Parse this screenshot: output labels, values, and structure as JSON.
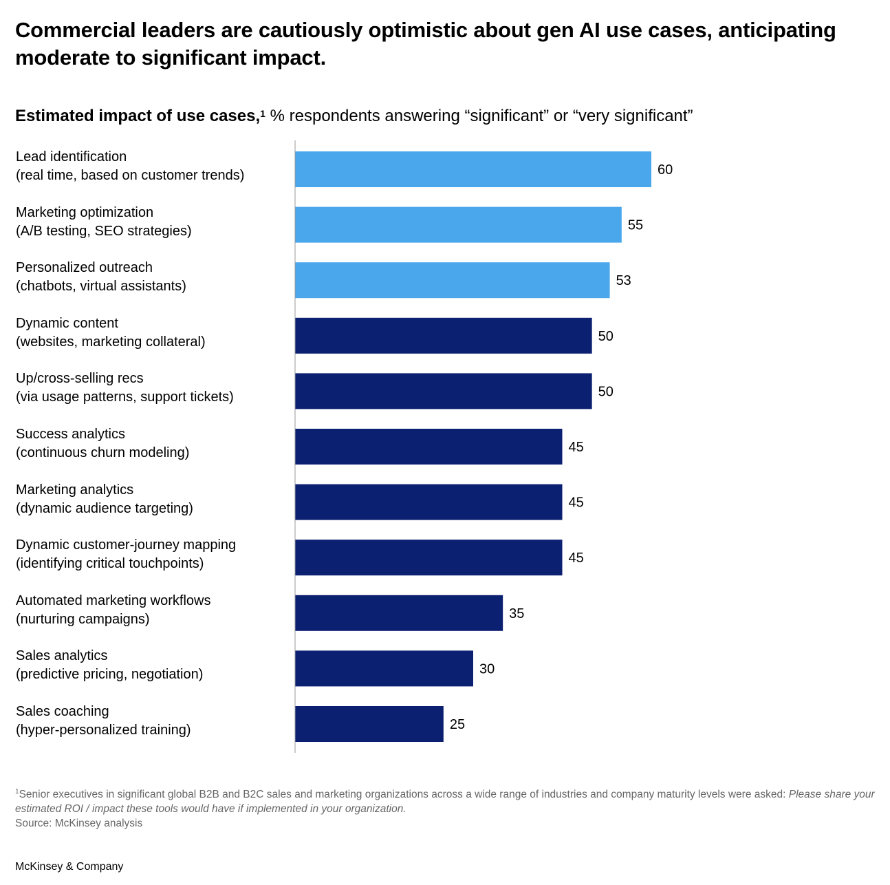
{
  "title": "Commercial leaders are cautiously optimistic about gen AI use cases, anticipating moderate to significant impact.",
  "subtitle": {
    "bold": "Estimated impact of use cases,",
    "footnote_marker": "1",
    "rest": " % respondents answering “significant” or “very significant”"
  },
  "chart_data": {
    "type": "bar",
    "orientation": "horizontal",
    "categories": [
      {
        "name": "Lead identification",
        "detail": "(real time, based on customer trends)"
      },
      {
        "name": "Marketing optimization",
        "detail": "(A/B testing, SEO strategies)"
      },
      {
        "name": "Personalized outreach",
        "detail": "(chatbots, virtual assistants)"
      },
      {
        "name": "Dynamic content",
        "detail": "(websites, marketing collateral)"
      },
      {
        "name": "Up/cross-selling recs",
        "detail": "(via usage patterns, support tickets)"
      },
      {
        "name": "Success analytics",
        "detail": "(continuous churn modeling)"
      },
      {
        "name": "Marketing analytics",
        "detail": "(dynamic audience targeting)"
      },
      {
        "name": "Dynamic customer-journey mapping",
        "detail": "(identifying critical touchpoints)"
      },
      {
        "name": "Automated marketing workflows",
        "detail": "(nurturing campaigns)"
      },
      {
        "name": "Sales analytics",
        "detail": "(predictive pricing, negotiation)"
      },
      {
        "name": "Sales coaching",
        "detail": "(hyper-personalized training)"
      }
    ],
    "values": [
      60,
      55,
      53,
      50,
      50,
      45,
      45,
      45,
      35,
      30,
      25
    ],
    "highlighted": [
      true,
      true,
      true,
      false,
      false,
      false,
      false,
      false,
      false,
      false,
      false
    ],
    "colors": {
      "highlight": "#4BA7EB",
      "default": "#0C2072",
      "axis": "#999999"
    },
    "xlim": [
      0,
      60
    ],
    "grid": false,
    "legend": "none"
  },
  "footnote": {
    "marker": "1",
    "text": "Senior executives in significant global B2B and B2C sales and marketing organizations across a wide range of industries and company maturity levels were asked: ",
    "italic": "Please share your estimated ROI / impact these tools would have if implemented in your organization.",
    "source": "Source: McKinsey analysis"
  },
  "brand": "McKinsey & Company"
}
